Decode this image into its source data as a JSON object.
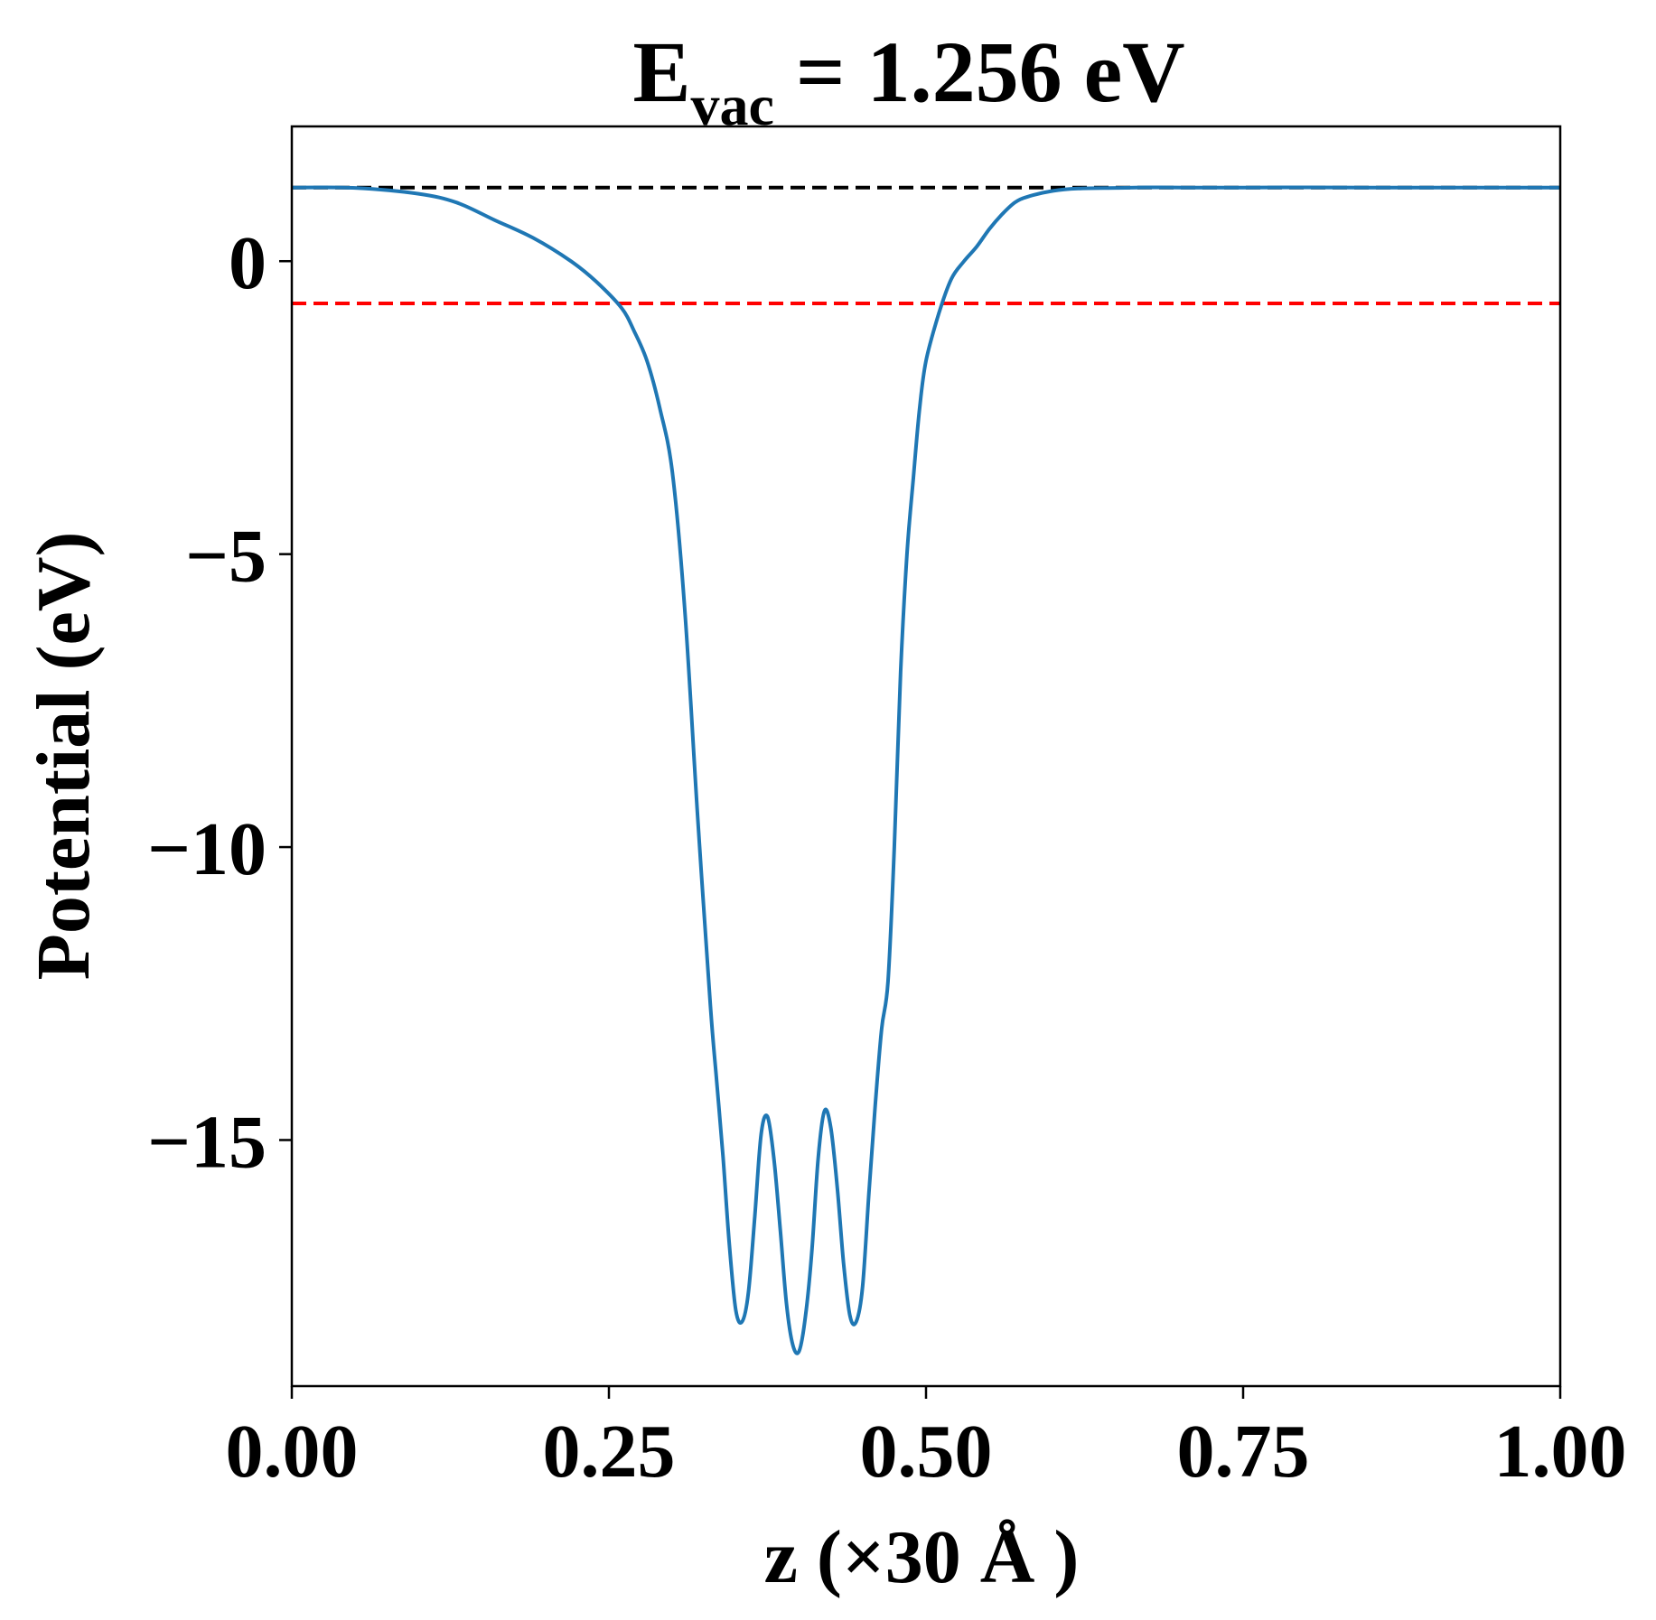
{
  "chart_data": {
    "type": "line",
    "title": {
      "main": "E",
      "subscript": "vac",
      "rest": " = 1.256 eV"
    },
    "xlabel": "z (×30 Å )",
    "ylabel": "Potential (eV)",
    "xlim": [
      0.0,
      1.0
    ],
    "ylim": [
      -19.2,
      2.3
    ],
    "x_ticks": [
      0.0,
      0.25,
      0.5,
      0.75,
      1.0
    ],
    "x_tick_labels": [
      "0.00",
      "0.25",
      "0.50",
      "0.75",
      "1.00"
    ],
    "y_ticks": [
      0,
      -5,
      -10,
      -15
    ],
    "y_tick_labels": [
      "0",
      "−5",
      "−10",
      "−15"
    ],
    "grid": false,
    "series": [
      {
        "color": "#1f77b4",
        "x": [
          0.0,
          0.05,
          0.1,
          0.13,
          0.16,
          0.19,
          0.22,
          0.24,
          0.26,
          0.27,
          0.28,
          0.29,
          0.3,
          0.31,
          0.32,
          0.33,
          0.335,
          0.34,
          0.345,
          0.35,
          0.355,
          0.36,
          0.365,
          0.37,
          0.375,
          0.38,
          0.385,
          0.39,
          0.395,
          0.4,
          0.405,
          0.41,
          0.415,
          0.42,
          0.425,
          0.43,
          0.435,
          0.44,
          0.445,
          0.45,
          0.455,
          0.46,
          0.465,
          0.47,
          0.475,
          0.48,
          0.485,
          0.49,
          0.495,
          0.5,
          0.51,
          0.52,
          0.53,
          0.54,
          0.55,
          0.56,
          0.57,
          0.58,
          0.6,
          0.62,
          0.65,
          0.68,
          0.71,
          0.75,
          0.8,
          0.85,
          0.9,
          0.95,
          1.0
        ],
        "y": [
          1.256,
          1.25,
          1.15,
          1.0,
          0.7,
          0.4,
          0.0,
          -0.35,
          -0.8,
          -1.2,
          -1.7,
          -2.5,
          -3.6,
          -6.0,
          -9.5,
          -12.7,
          -14.0,
          -15.3,
          -16.8,
          -17.9,
          -18.1,
          -17.6,
          -16.3,
          -14.9,
          -14.6,
          -15.3,
          -16.5,
          -17.8,
          -18.5,
          -18.6,
          -18.0,
          -16.9,
          -15.3,
          -14.5,
          -14.8,
          -15.8,
          -17.1,
          -18.0,
          -18.1,
          -17.5,
          -15.9,
          -14.4,
          -13.1,
          -12.3,
          -10.0,
          -7.0,
          -5.0,
          -3.7,
          -2.5,
          -1.7,
          -0.9,
          -0.3,
          0.0,
          0.25,
          0.55,
          0.8,
          1.0,
          1.1,
          1.2,
          1.24,
          1.25,
          1.26,
          1.256,
          1.256,
          1.26,
          1.256,
          1.256,
          1.256,
          1.256
        ]
      }
    ],
    "reference_lines": [
      {
        "y": 1.256,
        "color": "#000000",
        "style": "dashed"
      },
      {
        "y": -0.72,
        "color": "#ff0000",
        "style": "dashed"
      }
    ]
  }
}
